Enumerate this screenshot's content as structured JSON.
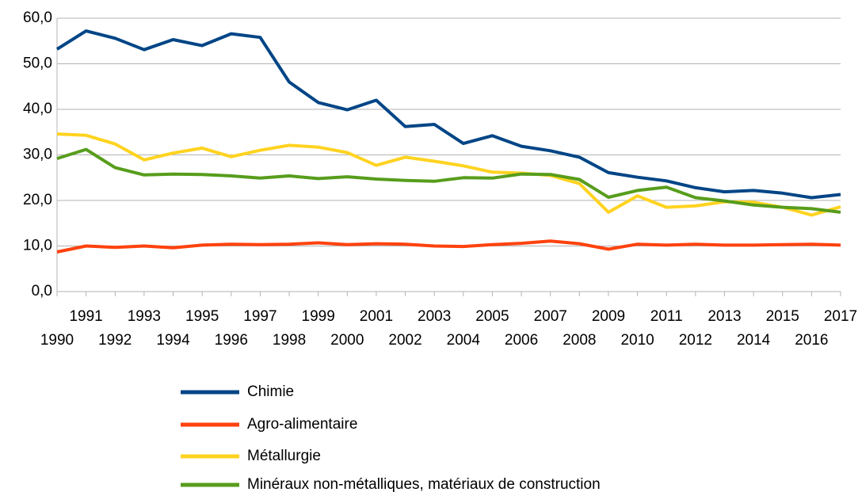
{
  "chart_data": {
    "type": "line",
    "categories": [
      "1990",
      "1991",
      "1992",
      "1993",
      "1994",
      "1995",
      "1996",
      "1997",
      "1998",
      "1999",
      "2000",
      "2001",
      "2002",
      "2003",
      "2004",
      "2005",
      "2006",
      "2007",
      "2008",
      "2009",
      "2010",
      "2011",
      "2012",
      "2013",
      "2014",
      "2015",
      "2016",
      "2017"
    ],
    "series": [
      {
        "name": "Chimie",
        "color": "#004586",
        "values": [
          53.2,
          57.2,
          55.6,
          53.1,
          55.3,
          54.0,
          56.6,
          55.8,
          46.0,
          41.5,
          39.9,
          42.0,
          36.2,
          36.7,
          32.5,
          34.2,
          31.9,
          30.9,
          29.5,
          26.1,
          25.1,
          24.3,
          22.8,
          21.9,
          22.2,
          21.6,
          20.6,
          21.3
        ]
      },
      {
        "name": "Agro-alimentaire",
        "color": "#ff420e",
        "values": [
          8.7,
          10.0,
          9.7,
          10.0,
          9.6,
          10.2,
          10.4,
          10.3,
          10.4,
          10.7,
          10.3,
          10.5,
          10.4,
          10.0,
          9.9,
          10.3,
          10.6,
          11.1,
          10.5,
          9.3,
          10.4,
          10.2,
          10.4,
          10.2,
          10.2,
          10.3,
          10.4,
          10.2
        ]
      },
      {
        "name": "Métallurgie",
        "color": "#ffd320",
        "values": [
          34.6,
          34.3,
          32.4,
          28.9,
          30.4,
          31.5,
          29.6,
          31.0,
          32.1,
          31.7,
          30.5,
          27.7,
          29.5,
          28.6,
          27.6,
          26.2,
          26.0,
          25.5,
          23.7,
          17.4,
          21.0,
          18.5,
          18.8,
          19.7,
          19.6,
          18.5,
          16.8,
          18.6
        ]
      },
      {
        "name": "Minéraux non-métalliques, matériaux de construction",
        "color": "#579d1c",
        "values": [
          29.2,
          31.2,
          27.2,
          25.6,
          25.8,
          25.7,
          25.4,
          24.9,
          25.4,
          24.8,
          25.2,
          24.7,
          24.4,
          24.2,
          25.0,
          24.9,
          25.8,
          25.7,
          24.6,
          20.7,
          22.2,
          22.9,
          20.6,
          19.9,
          19.0,
          18.5,
          18.2,
          17.4
        ]
      }
    ],
    "ylim": [
      0,
      60
    ],
    "yticks": [
      {
        "value": 0,
        "label": "0,0"
      },
      {
        "value": 10,
        "label": "10,0"
      },
      {
        "value": 20,
        "label": "20,0"
      },
      {
        "value": 30,
        "label": "30,0"
      },
      {
        "value": 40,
        "label": "40,0"
      },
      {
        "value": 50,
        "label": "50,0"
      },
      {
        "value": 60,
        "label": "60,0"
      }
    ],
    "grid": true,
    "legend": "bottom"
  }
}
